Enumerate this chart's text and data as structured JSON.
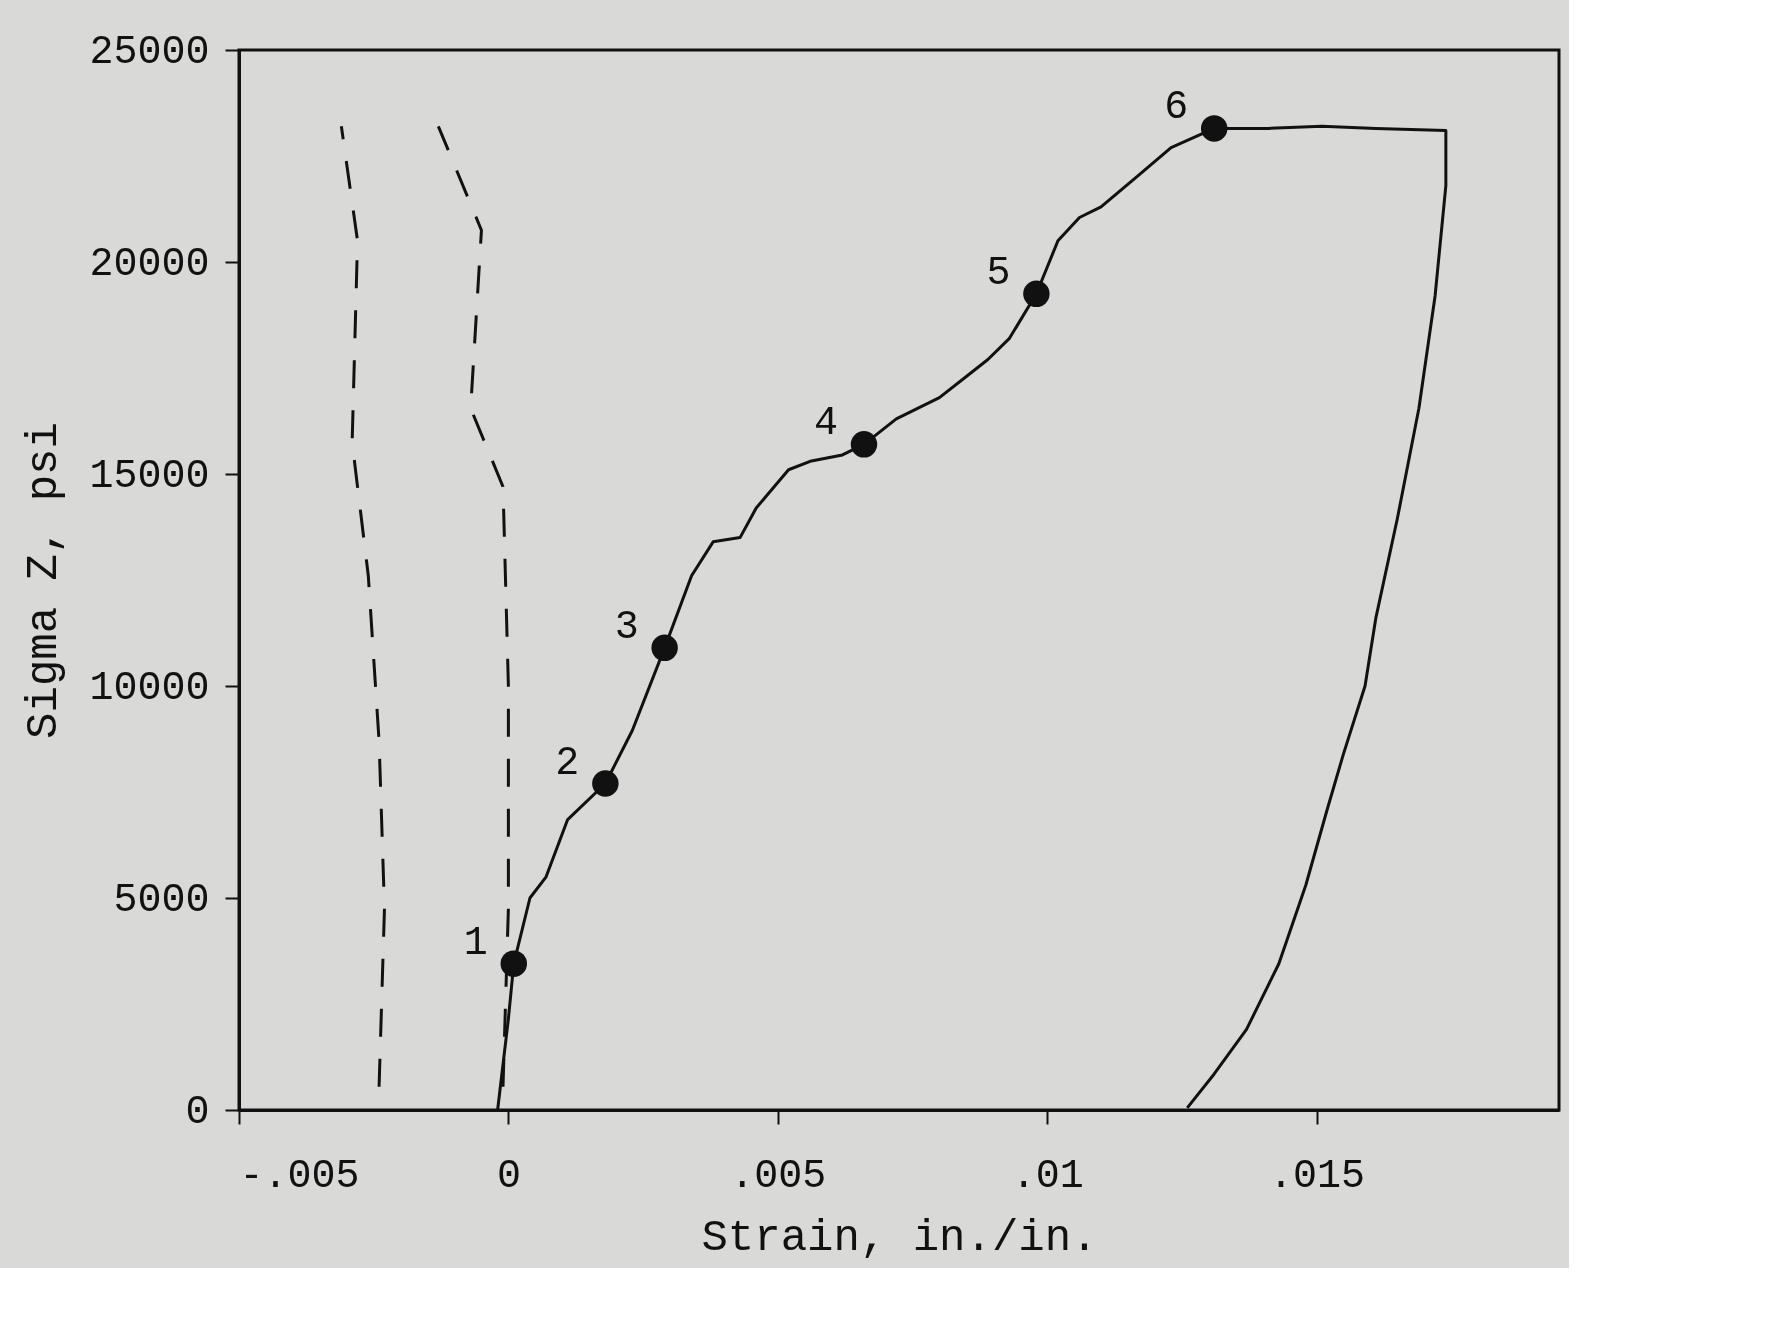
{
  "chart_data": {
    "type": "line",
    "xlabel": "Strain,  in./in.",
    "ylabel": "Sigma Z,  psi",
    "xlim": [
      -0.005,
      0.0195
    ],
    "ylim": [
      0,
      25000
    ],
    "xticks": [
      {
        "value": -0.005,
        "label": "-.005"
      },
      0,
      {
        "value": 0.005,
        "label": ".005"
      },
      {
        "value": 0.01,
        "label": ".01"
      },
      {
        "value": 0.015,
        "label": ".015"
      }
    ],
    "yticks": [
      0,
      5000,
      10000,
      15000,
      20000,
      25000
    ],
    "grid": false,
    "series": [
      {
        "line_style": "solid",
        "color": "#111111",
        "x": [
          -0.0002,
          0.0,
          0.0001,
          0.0004,
          0.0007,
          0.0011,
          0.0018,
          0.0023,
          0.0029,
          0.0034,
          0.0038,
          0.0043,
          0.0046,
          0.0052,
          0.0056,
          0.0062,
          0.0066,
          0.0072,
          0.008,
          0.0085,
          0.0089,
          0.0093,
          0.0098,
          0.0102,
          0.0106,
          0.011,
          0.0117,
          0.0123,
          0.0131,
          0.0141,
          0.0151,
          0.0161,
          0.0174,
          0.0174,
          0.0172,
          0.0169,
          0.0165,
          0.0161,
          0.0159,
          0.0155,
          0.0152,
          0.0148,
          0.0143,
          0.0137,
          0.0131,
          0.0126
        ],
        "values": [
          0,
          2150,
          3450,
          5000,
          5500,
          6850,
          7700,
          8950,
          10900,
          12600,
          13400,
          13500,
          14200,
          15100,
          15300,
          15450,
          15700,
          16300,
          16800,
          17300,
          17700,
          18200,
          19250,
          20500,
          21050,
          21300,
          22050,
          22700,
          23150,
          23150,
          23200,
          23150,
          23100,
          21800,
          19200,
          16550,
          13950,
          11600,
          10000,
          8400,
          7100,
          5300,
          3450,
          1900,
          850,
          50
        ]
      },
      {
        "line_style": "dashed",
        "color": "#111111",
        "x": [
          -0.0024,
          -0.0023,
          -0.0024,
          -0.0026,
          -0.0029,
          -0.0028,
          -0.0031
        ],
        "values": [
          550,
          4750,
          8700,
          12600,
          15750,
          20500,
          23200
        ]
      },
      {
        "line_style": "dashed",
        "color": "#111111",
        "x": [
          -0.0001,
          0.0,
          0.0,
          -0.0001,
          -0.0007,
          -0.0005,
          -0.0013
        ],
        "values": [
          550,
          4750,
          10000,
          14700,
          16550,
          20750,
          23200
        ]
      },
      {
        "type": "scatter",
        "marker": "circle",
        "color": "#111111",
        "x": [
          0.0001,
          0.0018,
          0.0029,
          0.0066,
          0.0098,
          0.0131
        ],
        "values": [
          3450,
          7700,
          10900,
          15700,
          19250,
          23150
        ]
      }
    ],
    "annotations": [
      {
        "text": "1",
        "x": 0.0001,
        "y": 3450
      },
      {
        "text": "2",
        "x": 0.0018,
        "y": 7700
      },
      {
        "text": "3",
        "x": 0.0029,
        "y": 10900
      },
      {
        "text": "4",
        "x": 0.0066,
        "y": 15700
      },
      {
        "text": "5",
        "x": 0.0098,
        "y": 19250
      },
      {
        "text": "6",
        "x": 0.0131,
        "y": 23150
      }
    ]
  }
}
